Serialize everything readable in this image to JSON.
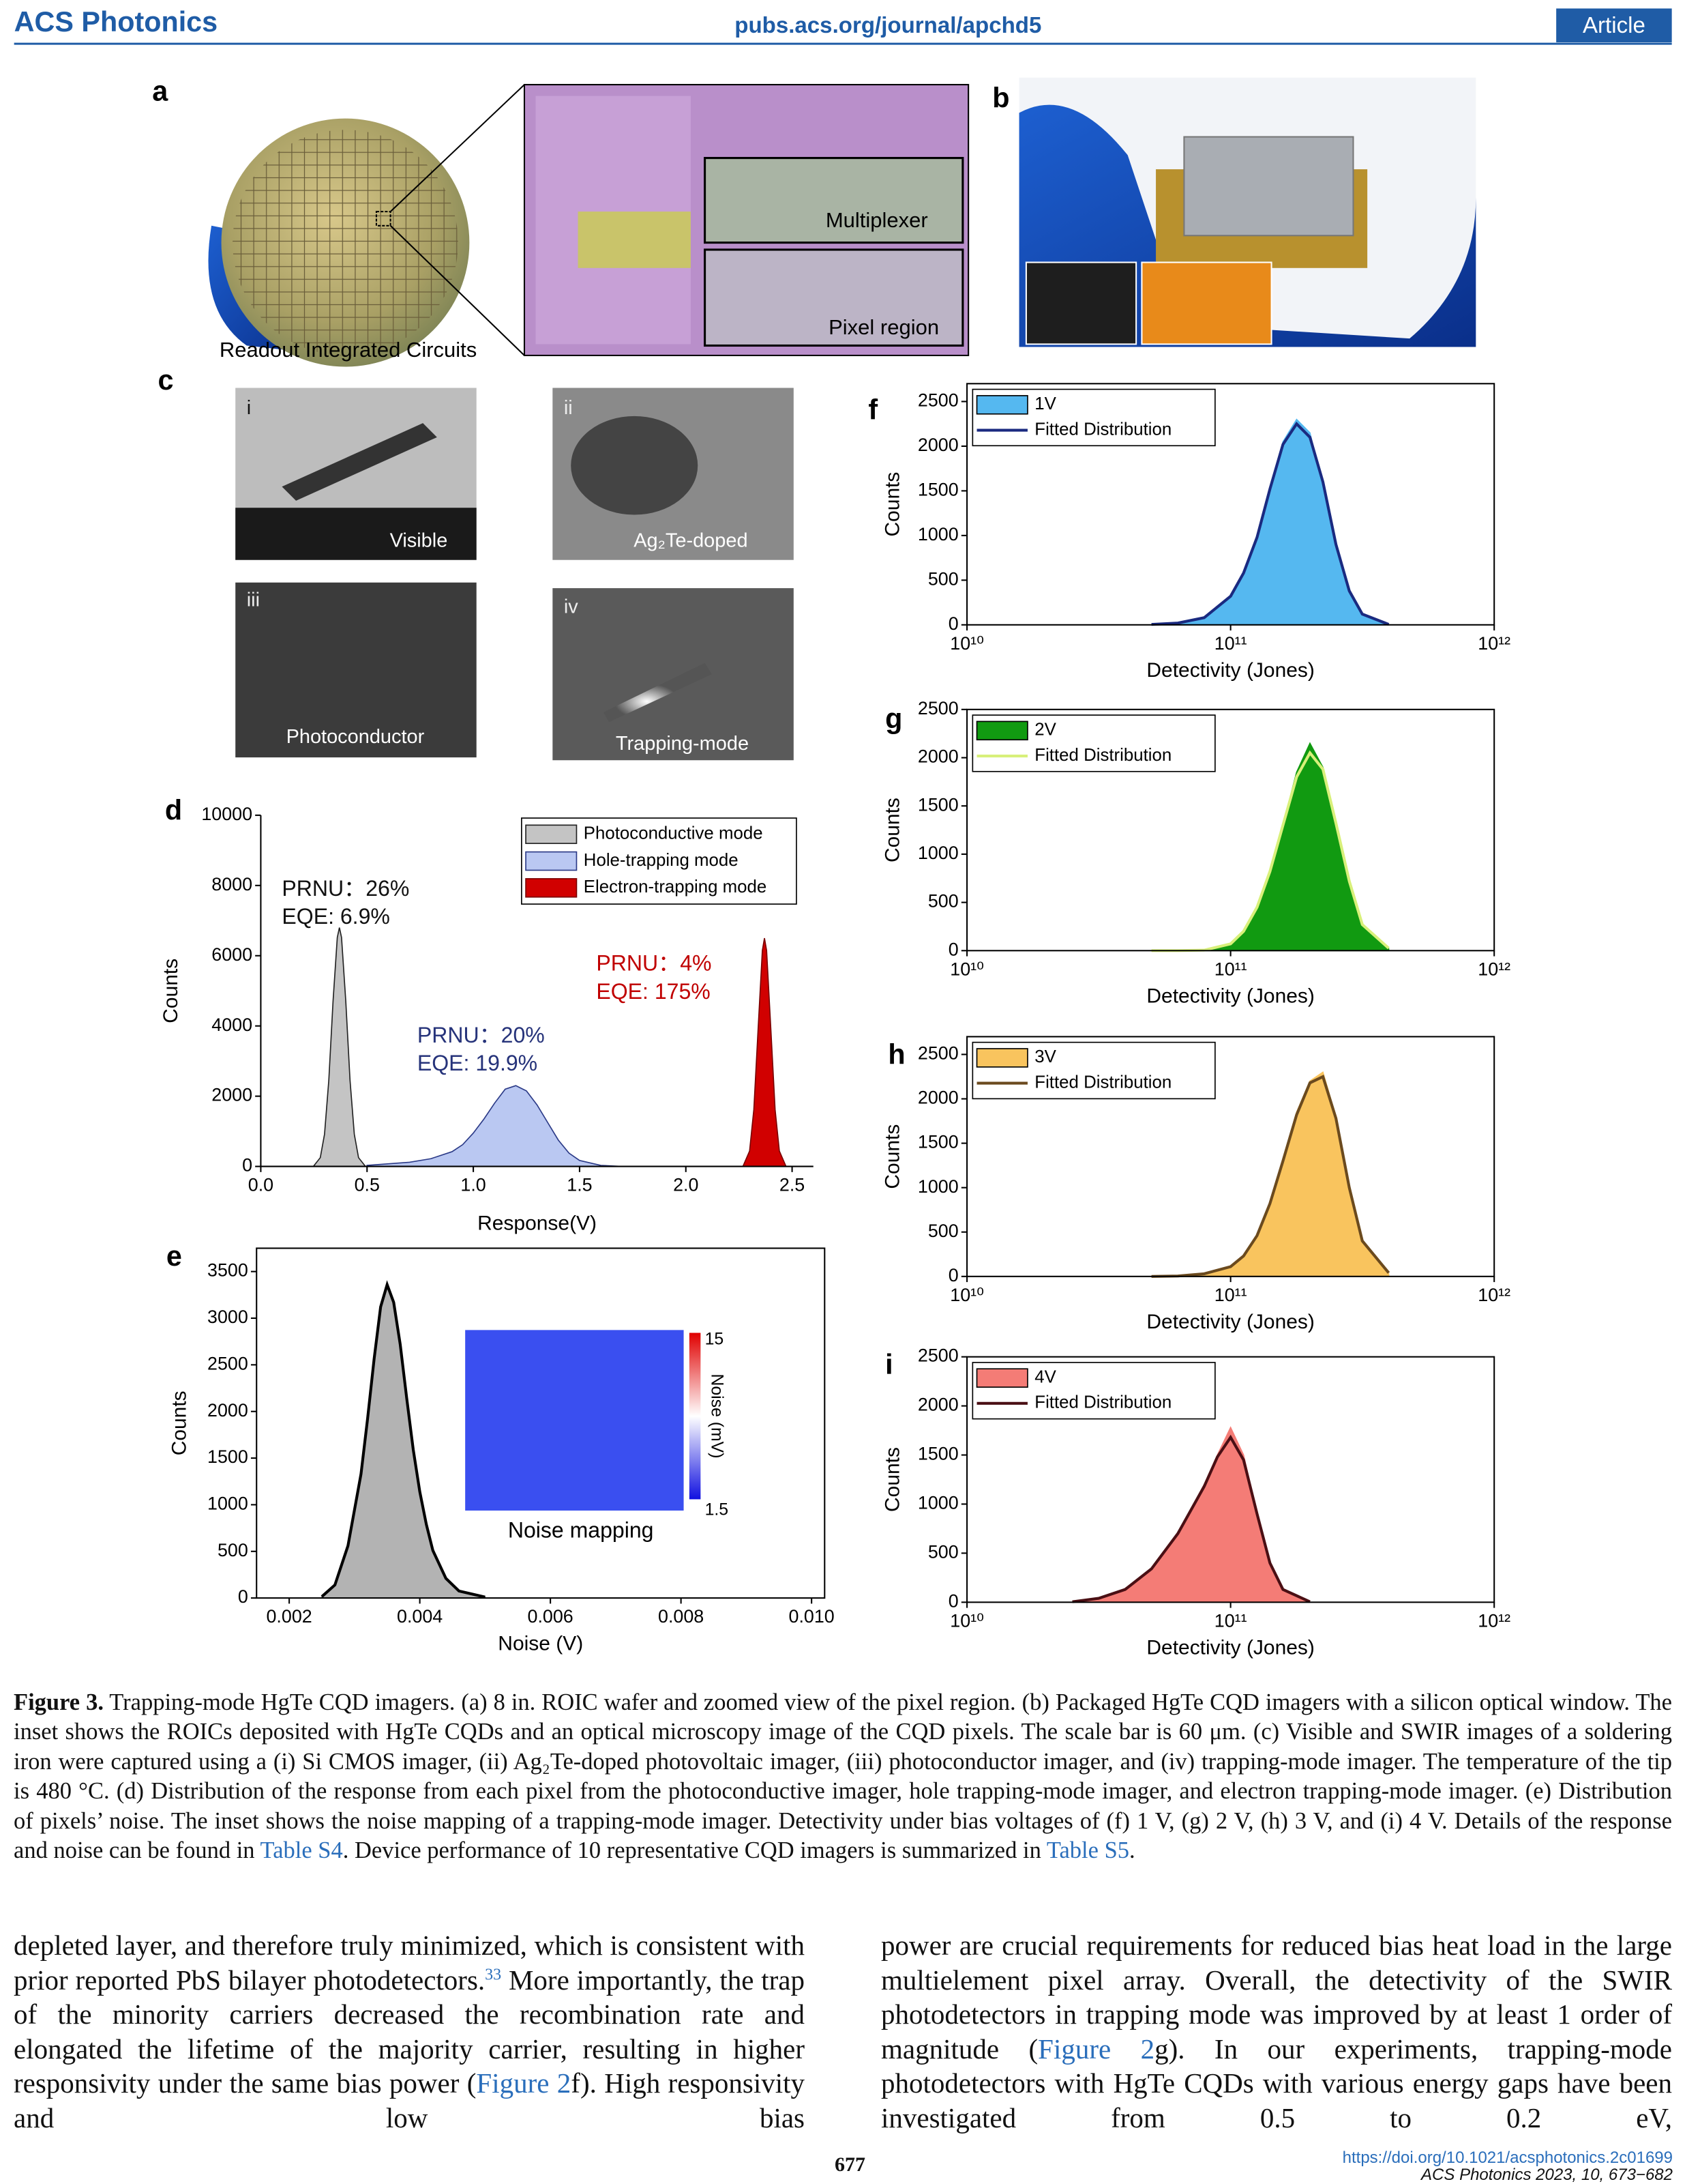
{
  "header": {
    "journal": "ACS Photonics",
    "url": "pubs.acs.org/journal/apchd5",
    "section": "Article"
  },
  "figure": {
    "panel_a": {
      "label": "a",
      "caption": "Readout Integrated Circuits",
      "multiplexer": "Multiplexer",
      "pixel_region": "Pixel region"
    },
    "panel_b": {
      "label": "b"
    },
    "panel_c": {
      "label": "c",
      "images": [
        {
          "numeral": "i",
          "label": "Visible"
        },
        {
          "numeral": "ii",
          "label": "Ag₂Te-doped"
        },
        {
          "numeral": "iii",
          "label": "Photoconductor"
        },
        {
          "numeral": "iv",
          "label": "Trapping-mode"
        }
      ]
    }
  },
  "chart_data": [
    {
      "type": "area",
      "panel": "d",
      "xlabel": "Response(V)",
      "ylabel": "Counts",
      "xlim": [
        0,
        2.6
      ],
      "ylim": [
        0,
        10000
      ],
      "xticks": [
        {
          "value": 0,
          "label": "0.0"
        },
        0.5,
        {
          "value": 1,
          "label": "1.0"
        },
        1.5,
        {
          "value": 2,
          "label": "2.0"
        },
        2.5
      ],
      "yticks": [
        0,
        2000,
        4000,
        6000,
        8000,
        10000
      ],
      "legend": "upper right",
      "series": [
        {
          "name": "Photoconductive mode",
          "color": "#c4c4c4",
          "edge": "#222222",
          "fill": true,
          "x": [
            0.25,
            0.28,
            0.3,
            0.32,
            0.34,
            0.36,
            0.37,
            0.38,
            0.4,
            0.42,
            0.44,
            0.46,
            0.49
          ],
          "values": [
            20,
            250,
            920,
            2450,
            4700,
            6520,
            6800,
            6520,
            4700,
            2450,
            920,
            250,
            20
          ]
        },
        {
          "name": "Hole-trapping mode",
          "color": "#bac8f2",
          "edge": "#2b3a87",
          "fill": true,
          "x": [
            0.5,
            0.7,
            0.8,
            0.9,
            0.95,
            1.0,
            1.05,
            1.1,
            1.15,
            1.2,
            1.25,
            1.3,
            1.35,
            1.4,
            1.45,
            1.5,
            1.6,
            1.7
          ],
          "values": [
            30,
            120,
            220,
            420,
            620,
            950,
            1350,
            1800,
            2200,
            2300,
            2150,
            1750,
            1250,
            750,
            380,
            170,
            30,
            0
          ]
        },
        {
          "name": "Electron-trapping mode",
          "color": "#d10000",
          "edge": "#7a0000",
          "fill": true,
          "x": [
            2.27,
            2.3,
            2.32,
            2.34,
            2.36,
            2.37,
            2.38,
            2.4,
            2.42,
            2.44,
            2.47
          ],
          "values": [
            20,
            440,
            1620,
            3900,
            6150,
            6500,
            6150,
            3900,
            1620,
            440,
            20
          ]
        }
      ],
      "annotations": [
        {
          "lines": [
            "PRNU：26%",
            "EQE: 6.9%"
          ],
          "color": "#111111"
        },
        {
          "lines": [
            "PRNU：20%",
            "EQE: 19.9%"
          ],
          "color": "#26337a"
        },
        {
          "lines": [
            "PRNU：4%",
            "EQE: 175%"
          ],
          "color": "#c00000"
        }
      ]
    },
    {
      "type": "area",
      "panel": "e",
      "xlabel": "Noise (V)",
      "ylabel": "Counts",
      "xlim": [
        0.0015,
        0.0102
      ],
      "ylim": [
        0,
        3750
      ],
      "xticks": [
        0.002,
        0.004,
        0.006,
        0.008,
        {
          "value": 0.01,
          "label": "0.010"
        }
      ],
      "yticks": [
        0,
        500,
        1000,
        1500,
        2000,
        2500,
        3000,
        3500
      ],
      "x": [
        0.0025,
        0.0027,
        0.0029,
        0.0031,
        0.0032,
        0.0033,
        0.0034,
        0.0035,
        0.0036,
        0.0037,
        0.0038,
        0.0039,
        0.004,
        0.0041,
        0.0042,
        0.0044,
        0.0046,
        0.005
      ],
      "series": [
        {
          "color": "#b3b3b3",
          "edge": "#8a8a8a",
          "fill": true,
          "values": [
            20,
            150,
            550,
            1350,
            1900,
            2550,
            3150,
            3380,
            3150,
            2700,
            2150,
            1600,
            1150,
            800,
            520,
            200,
            70,
            10
          ]
        },
        {
          "color": "#000000",
          "fill": false,
          "values": [
            15,
            140,
            560,
            1330,
            1920,
            2560,
            3120,
            3360,
            3170,
            2720,
            2140,
            1590,
            1140,
            790,
            510,
            210,
            75,
            10
          ]
        }
      ],
      "inset": {
        "title": "Noise mapping",
        "colorbar": {
          "max": 15,
          "min": 1.5,
          "label": "Noise (mV)"
        }
      }
    },
    {
      "type": "area",
      "panel": "f",
      "xlabel": "Detectivity (Jones)",
      "ylabel": "Counts",
      "xscale": "log",
      "xlim": [
        10000000000.0,
        1000000000000.0
      ],
      "ylim": [
        0,
        2700
      ],
      "xticks": [
        {
          "value": 10000000000.0,
          "label": "10¹⁰"
        },
        {
          "value": 100000000000.0,
          "label": "10¹¹"
        },
        {
          "value": 1000000000000.0,
          "label": "10¹²"
        }
      ],
      "yticks": [
        0,
        500,
        1000,
        1500,
        2000,
        2500
      ],
      "legend": "upper left",
      "x": [
        50100000000.0,
        63100000000.0,
        79400000000.0,
        100000000000.0,
        112000000000.0,
        126000000000.0,
        141000000000.0,
        158000000000.0,
        178000000000.0,
        200000000000.0,
        224000000000.0,
        251000000000.0,
        282000000000.0,
        316000000000.0,
        398000000000.0
      ],
      "series": [
        {
          "name": "1V",
          "color": "#55b8f0",
          "fill": true,
          "values": [
            0,
            0,
            60,
            300,
            550,
            950,
            1500,
            2050,
            2300,
            2150,
            1550,
            850,
            350,
            100,
            0
          ]
        },
        {
          "name": "Fitted Distribution",
          "color": "#1a2a80",
          "fill": false,
          "values": [
            5,
            20,
            80,
            320,
            580,
            980,
            1520,
            2020,
            2250,
            2100,
            1600,
            900,
            380,
            120,
            5
          ]
        }
      ]
    },
    {
      "type": "area",
      "panel": "g",
      "xlabel": "Detectivity (Jones)",
      "ylabel": "Counts",
      "xscale": "log",
      "xlim": [
        10000000000.0,
        1000000000000.0
      ],
      "ylim": [
        0,
        2500
      ],
      "xticks": [
        {
          "value": 10000000000.0,
          "label": "10¹⁰"
        },
        {
          "value": 100000000000.0,
          "label": "10¹¹"
        },
        {
          "value": 1000000000000.0,
          "label": "10¹²"
        }
      ],
      "yticks": [
        0,
        500,
        1000,
        1500,
        2000,
        2500
      ],
      "legend": "upper left",
      "x": [
        50100000000.0,
        63100000000.0,
        79400000000.0,
        100000000000.0,
        112000000000.0,
        126000000000.0,
        141000000000.0,
        158000000000.0,
        178000000000.0,
        200000000000.0,
        224000000000.0,
        251000000000.0,
        282000000000.0,
        316000000000.0,
        398000000000.0
      ],
      "series": [
        {
          "name": "2V",
          "color": "#119a11",
          "fill": true,
          "values": [
            0,
            0,
            0,
            60,
            180,
            420,
            800,
            1300,
            1850,
            2150,
            1900,
            1300,
            700,
            250,
            20
          ]
        },
        {
          "name": "Fitted Distribution",
          "color": "#d8f07a",
          "fill": false,
          "values": [
            0,
            0,
            5,
            70,
            200,
            450,
            820,
            1300,
            1800,
            2050,
            1880,
            1320,
            720,
            270,
            25
          ]
        }
      ]
    },
    {
      "type": "area",
      "panel": "h",
      "xlabel": "Detectivity (Jones)",
      "ylabel": "Counts",
      "xscale": "log",
      "xlim": [
        10000000000.0,
        1000000000000.0
      ],
      "ylim": [
        0,
        2700
      ],
      "xticks": [
        {
          "value": 10000000000.0,
          "label": "10¹⁰"
        },
        {
          "value": 100000000000.0,
          "label": "10¹¹"
        },
        {
          "value": 1000000000000.0,
          "label": "10¹²"
        }
      ],
      "yticks": [
        0,
        500,
        1000,
        1500,
        2000,
        2500
      ],
      "legend": "upper left",
      "x": [
        50100000000.0,
        63100000000.0,
        79400000000.0,
        100000000000.0,
        112000000000.0,
        126000000000.0,
        141000000000.0,
        158000000000.0,
        178000000000.0,
        200000000000.0,
        224000000000.0,
        251000000000.0,
        282000000000.0,
        316000000000.0,
        398000000000.0
      ],
      "series": [
        {
          "name": "3V",
          "color": "#f9c45e",
          "fill": true,
          "values": [
            0,
            0,
            20,
            100,
            220,
            450,
            800,
            1300,
            1850,
            2200,
            2300,
            1800,
            1000,
            380,
            30
          ]
        },
        {
          "name": "Fitted Distribution",
          "color": "#6b4a1e",
          "fill": false,
          "values": [
            0,
            5,
            30,
            110,
            230,
            460,
            820,
            1300,
            1820,
            2180,
            2250,
            1780,
            1000,
            400,
            40
          ]
        }
      ]
    },
    {
      "type": "area",
      "panel": "i",
      "xlabel": "Detectivity (Jones)",
      "ylabel": "Counts",
      "xscale": "log",
      "xlim": [
        10000000000.0,
        1000000000000.0
      ],
      "ylim": [
        0,
        2500
      ],
      "xticks": [
        {
          "value": 10000000000.0,
          "label": "10¹⁰"
        },
        {
          "value": 100000000000.0,
          "label": "10¹¹"
        },
        {
          "value": 1000000000000.0,
          "label": "10¹²"
        }
      ],
      "yticks": [
        0,
        500,
        1000,
        1500,
        2000,
        2500
      ],
      "legend": "upper left",
      "x": [
        25100000000.0,
        31600000000.0,
        39800000000.0,
        50100000000.0,
        63100000000.0,
        79400000000.0,
        89100000000.0,
        100000000000.0,
        112000000000.0,
        126000000000.0,
        141000000000.0,
        158000000000.0,
        200000000000.0
      ],
      "series": [
        {
          "name": "4V",
          "color": "#f47c76",
          "fill": true,
          "values": [
            0,
            30,
            120,
            330,
            700,
            1200,
            1500,
            1780,
            1500,
            900,
            380,
            120,
            0
          ]
        },
        {
          "name": "Fitted Distribution",
          "color": "#4a0f14",
          "fill": false,
          "values": [
            5,
            40,
            130,
            340,
            700,
            1180,
            1480,
            1680,
            1450,
            900,
            400,
            130,
            5
          ]
        }
      ]
    }
  ],
  "caption": {
    "label": "Figure 3.",
    "text1": " Trapping-mode HgTe CQD imagers. (a) 8 in. ROIC wafer and zoomed view of the pixel region. (b) Packaged HgTe CQD imagers with a silicon optical window. The inset shows the ROICs deposited with HgTe CQDs and an optical microscopy image of the CQD pixels. The scale bar is 60 μm. (c) Visible and SWIR images of a soldering iron were captured using a (i) Si CMOS imager, (ii) Ag₂Te-doped photovoltaic imager, (iii) photoconductor imager, and (iv) trapping-mode imager. The temperature of the tip is 480 °C. (d) Distribution of the response from each pixel from the photoconductive imager, hole trapping-mode imager, and electron trapping-mode imager. (e) Distribution of pixels’ noise. The inset shows the noise mapping of a trapping-mode imager. Detectivity under bias voltages of (f) 1 V, (g) 2 V, (h) 3 V, and (i) 4 V. Details of the response and noise can be found in ",
    "link1": "Table S4",
    "text2": ". Device performance of 10 representative CQD imagers is summarized in ",
    "link2": "Table S5",
    "text3": "."
  },
  "body": {
    "left": {
      "text1": "depleted layer, and therefore truly minimized, which is consistent with prior reported PbS bilayer photodetectors.",
      "ref": "33",
      "text2": " More importantly, the trap of the minority carriers decreased the recombination rate and elongated the lifetime of the majority carrier, resulting in higher responsivity under the same bias power (",
      "link": "Figure 2",
      "text3": "f). High responsivity and low bias"
    },
    "right": {
      "text1": "power are crucial requirements for reduced bias heat load in the large multielement pixel array. Overall, the detectivity of the SWIR photodetectors in trapping mode was improved by at least 1 order of magnitude (",
      "link": "Figure 2",
      "text2": "g). In our experiments, trapping-mode photodetectors with HgTe CQDs with various energy gaps have been investigated from 0.5 to 0.2 eV,"
    }
  },
  "footer": {
    "page": "677",
    "doi": "https://doi.org/10.1021/acsphotonics.2c01699",
    "citation": "ACS Photonics 2023, 10, 673−682"
  }
}
